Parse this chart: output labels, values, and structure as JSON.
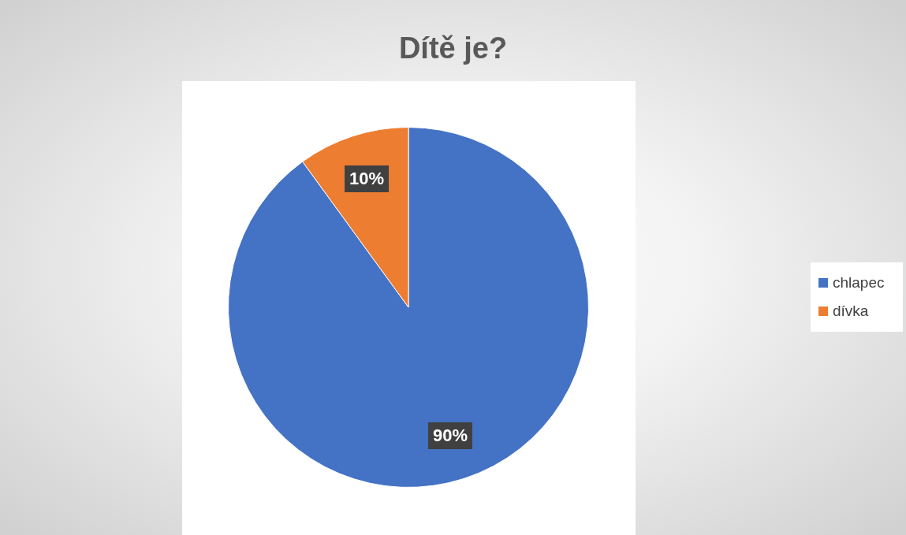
{
  "chart_data": {
    "type": "pie",
    "title": "Dítě je?",
    "categories": [
      "chlapec",
      "dívka"
    ],
    "values": [
      90,
      10
    ],
    "colors": [
      "#4472c4",
      "#ed7d31"
    ],
    "value_labels": [
      "90%",
      "10%"
    ],
    "legend": "right"
  }
}
